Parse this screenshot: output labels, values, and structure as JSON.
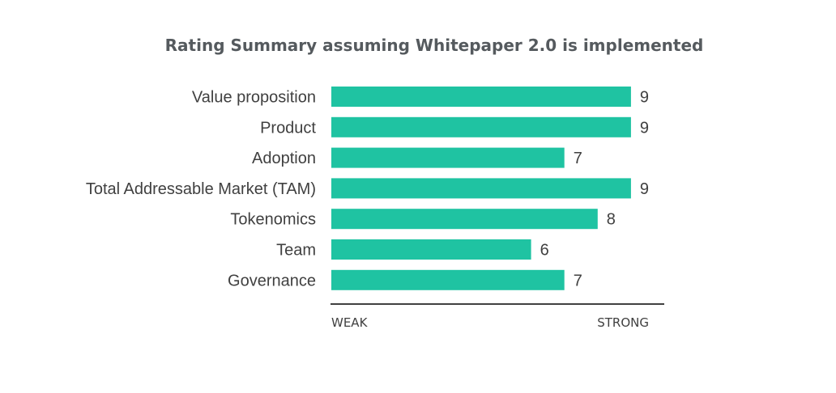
{
  "chart_data": {
    "type": "bar",
    "orientation": "horizontal",
    "title": "Rating Summary assuming Whitepaper 2.0 is implemented",
    "categories": [
      "Value proposition",
      "Product",
      "Adoption",
      "Total Addressable Market (TAM)",
      "Tokenomics",
      "Team",
      "Governance"
    ],
    "values": [
      9,
      9,
      7,
      9,
      8,
      6,
      7
    ],
    "xlim": [
      0,
      10
    ],
    "axis_labels": {
      "low": "WEAK",
      "high": "STRONG"
    },
    "bar_color": "#1fc3a2",
    "axis_color": "#404040",
    "grid": false,
    "legend": false
  }
}
